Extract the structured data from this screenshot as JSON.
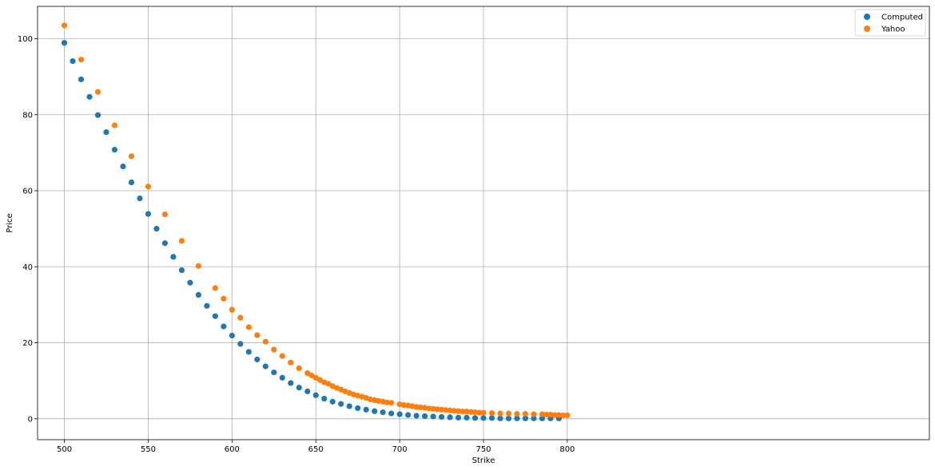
{
  "chart_data": {
    "type": "scatter",
    "xlabel": "Strike",
    "ylabel": "Price",
    "xlim": [
      484,
      1016
    ],
    "ylim": [
      -5.5,
      108.5
    ],
    "xticks": [
      500,
      550,
      600,
      650,
      700,
      750,
      800
    ],
    "yticks": [
      0,
      20,
      40,
      60,
      80,
      100
    ],
    "grid": true,
    "legend_position": "top-right",
    "series": [
      {
        "name": "Computed",
        "color": "#1f77b4",
        "x": [
          500,
          505,
          510,
          515,
          520,
          525,
          530,
          535,
          540,
          545,
          550,
          555,
          560,
          565,
          570,
          575,
          580,
          585,
          590,
          595,
          600,
          605,
          610,
          615,
          620,
          625,
          630,
          635,
          640,
          645,
          650,
          655,
          660,
          665,
          670,
          675,
          680,
          685,
          690,
          695,
          700,
          705,
          710,
          715,
          720,
          725,
          730,
          735,
          740,
          745,
          750,
          755,
          760,
          765,
          770,
          775,
          780,
          785,
          790,
          795
        ],
        "y": [
          98.9,
          94.1,
          89.3,
          84.7,
          79.9,
          75.4,
          70.8,
          66.4,
          62.2,
          58.0,
          53.9,
          50.0,
          46.2,
          42.6,
          39.1,
          35.8,
          32.6,
          29.7,
          27.0,
          24.3,
          21.9,
          19.7,
          17.6,
          15.6,
          13.8,
          12.2,
          10.8,
          9.4,
          8.2,
          7.2,
          6.2,
          5.3,
          4.5,
          3.9,
          3.3,
          2.8,
          2.4,
          2.0,
          1.7,
          1.4,
          1.2,
          1.0,
          0.8,
          0.7,
          0.6,
          0.5,
          0.4,
          0.3,
          0.3,
          0.2,
          0.2,
          0.2,
          0.1,
          0.1,
          0.1,
          0.1,
          0.1,
          0.1,
          0.1,
          0.1
        ]
      },
      {
        "name": "Yahoo",
        "color": "#ff7f0e",
        "x": [
          500,
          510,
          520,
          530,
          540,
          550,
          560,
          570,
          580,
          590,
          595,
          600,
          605,
          610,
          615,
          620,
          625,
          630,
          635,
          640,
          645,
          647.5,
          650,
          652.5,
          655,
          657.5,
          660,
          662.5,
          665,
          667.5,
          670,
          672.5,
          675,
          677.5,
          680,
          682.5,
          685,
          687.5,
          690,
          692.5,
          695,
          700,
          702.5,
          705,
          707.5,
          710,
          712.5,
          715,
          717.5,
          720,
          722.5,
          725,
          727.5,
          730,
          732.5,
          735,
          737.5,
          740,
          742.5,
          745,
          747.5,
          750,
          755,
          760,
          765,
          770,
          775,
          780,
          785,
          787.5,
          790,
          792.5,
          795,
          797.5,
          800
        ],
        "y": [
          103.5,
          94.5,
          86.0,
          77.2,
          69.1,
          61.1,
          53.8,
          46.8,
          40.2,
          34.4,
          31.6,
          28.7,
          26.6,
          24.1,
          22.0,
          20.3,
          18.2,
          16.5,
          14.8,
          13.3,
          12.0,
          11.4,
          10.8,
          10.2,
          9.6,
          9.2,
          8.6,
          8.1,
          7.7,
          7.2,
          6.8,
          6.4,
          6.1,
          5.8,
          5.5,
          5.1,
          4.9,
          4.7,
          4.5,
          4.3,
          4.2,
          3.8,
          3.6,
          3.5,
          3.3,
          3.1,
          3.0,
          2.9,
          2.7,
          2.6,
          2.5,
          2.4,
          2.3,
          2.2,
          2.1,
          2.0,
          1.9,
          1.9,
          1.8,
          1.7,
          1.6,
          1.6,
          1.5,
          1.4,
          1.4,
          1.3,
          1.3,
          1.2,
          1.2,
          1.1,
          1.1,
          1.0,
          1.0,
          0.9,
          0.9
        ]
      }
    ]
  }
}
